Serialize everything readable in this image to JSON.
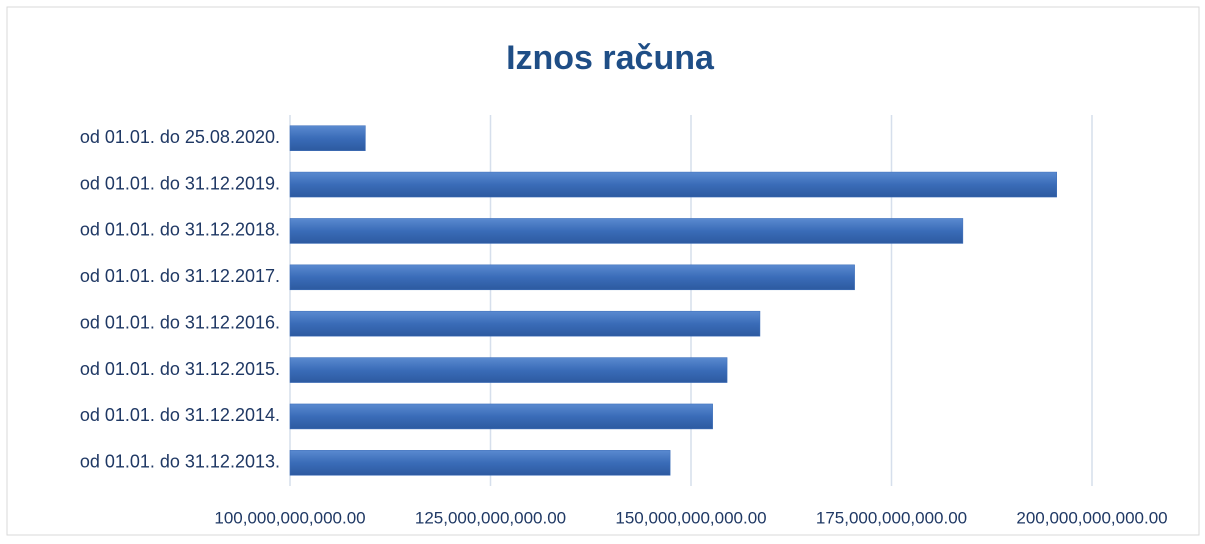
{
  "chart_data": {
    "type": "bar",
    "orientation": "horizontal",
    "title": "Iznos računa",
    "categories": [
      "od 01.01. do 25.08.2020.",
      "od 01.01. do 31.12.2019.",
      "od 01.01. do 31.12.2018.",
      "od 01.01. do 31.12.2017.",
      "od 01.01. do 31.12.2016.",
      "od 01.01. do 31.12.2015.",
      "od 01.01. do 31.12.2014.",
      "od 01.01. do 31.12.2013."
    ],
    "values": [
      109400000000,
      195600000000,
      183900000000,
      170400000000,
      158600000000,
      154500000000,
      152700000000,
      147400000000
    ],
    "color": "#3a6cb8",
    "xlim": [
      100000000000,
      200000000000
    ],
    "xticks": [
      {
        "value": 100000000000,
        "label": "100,000,000,000.00"
      },
      {
        "value": 125000000000,
        "label": "125,000,000,000.00"
      },
      {
        "value": 150000000000,
        "label": "150,000,000,000.00"
      },
      {
        "value": 175000000000,
        "label": "175,000,000,000.00"
      },
      {
        "value": 200000000000,
        "label": "200,000,000,000.00"
      }
    ],
    "grid": true
  }
}
